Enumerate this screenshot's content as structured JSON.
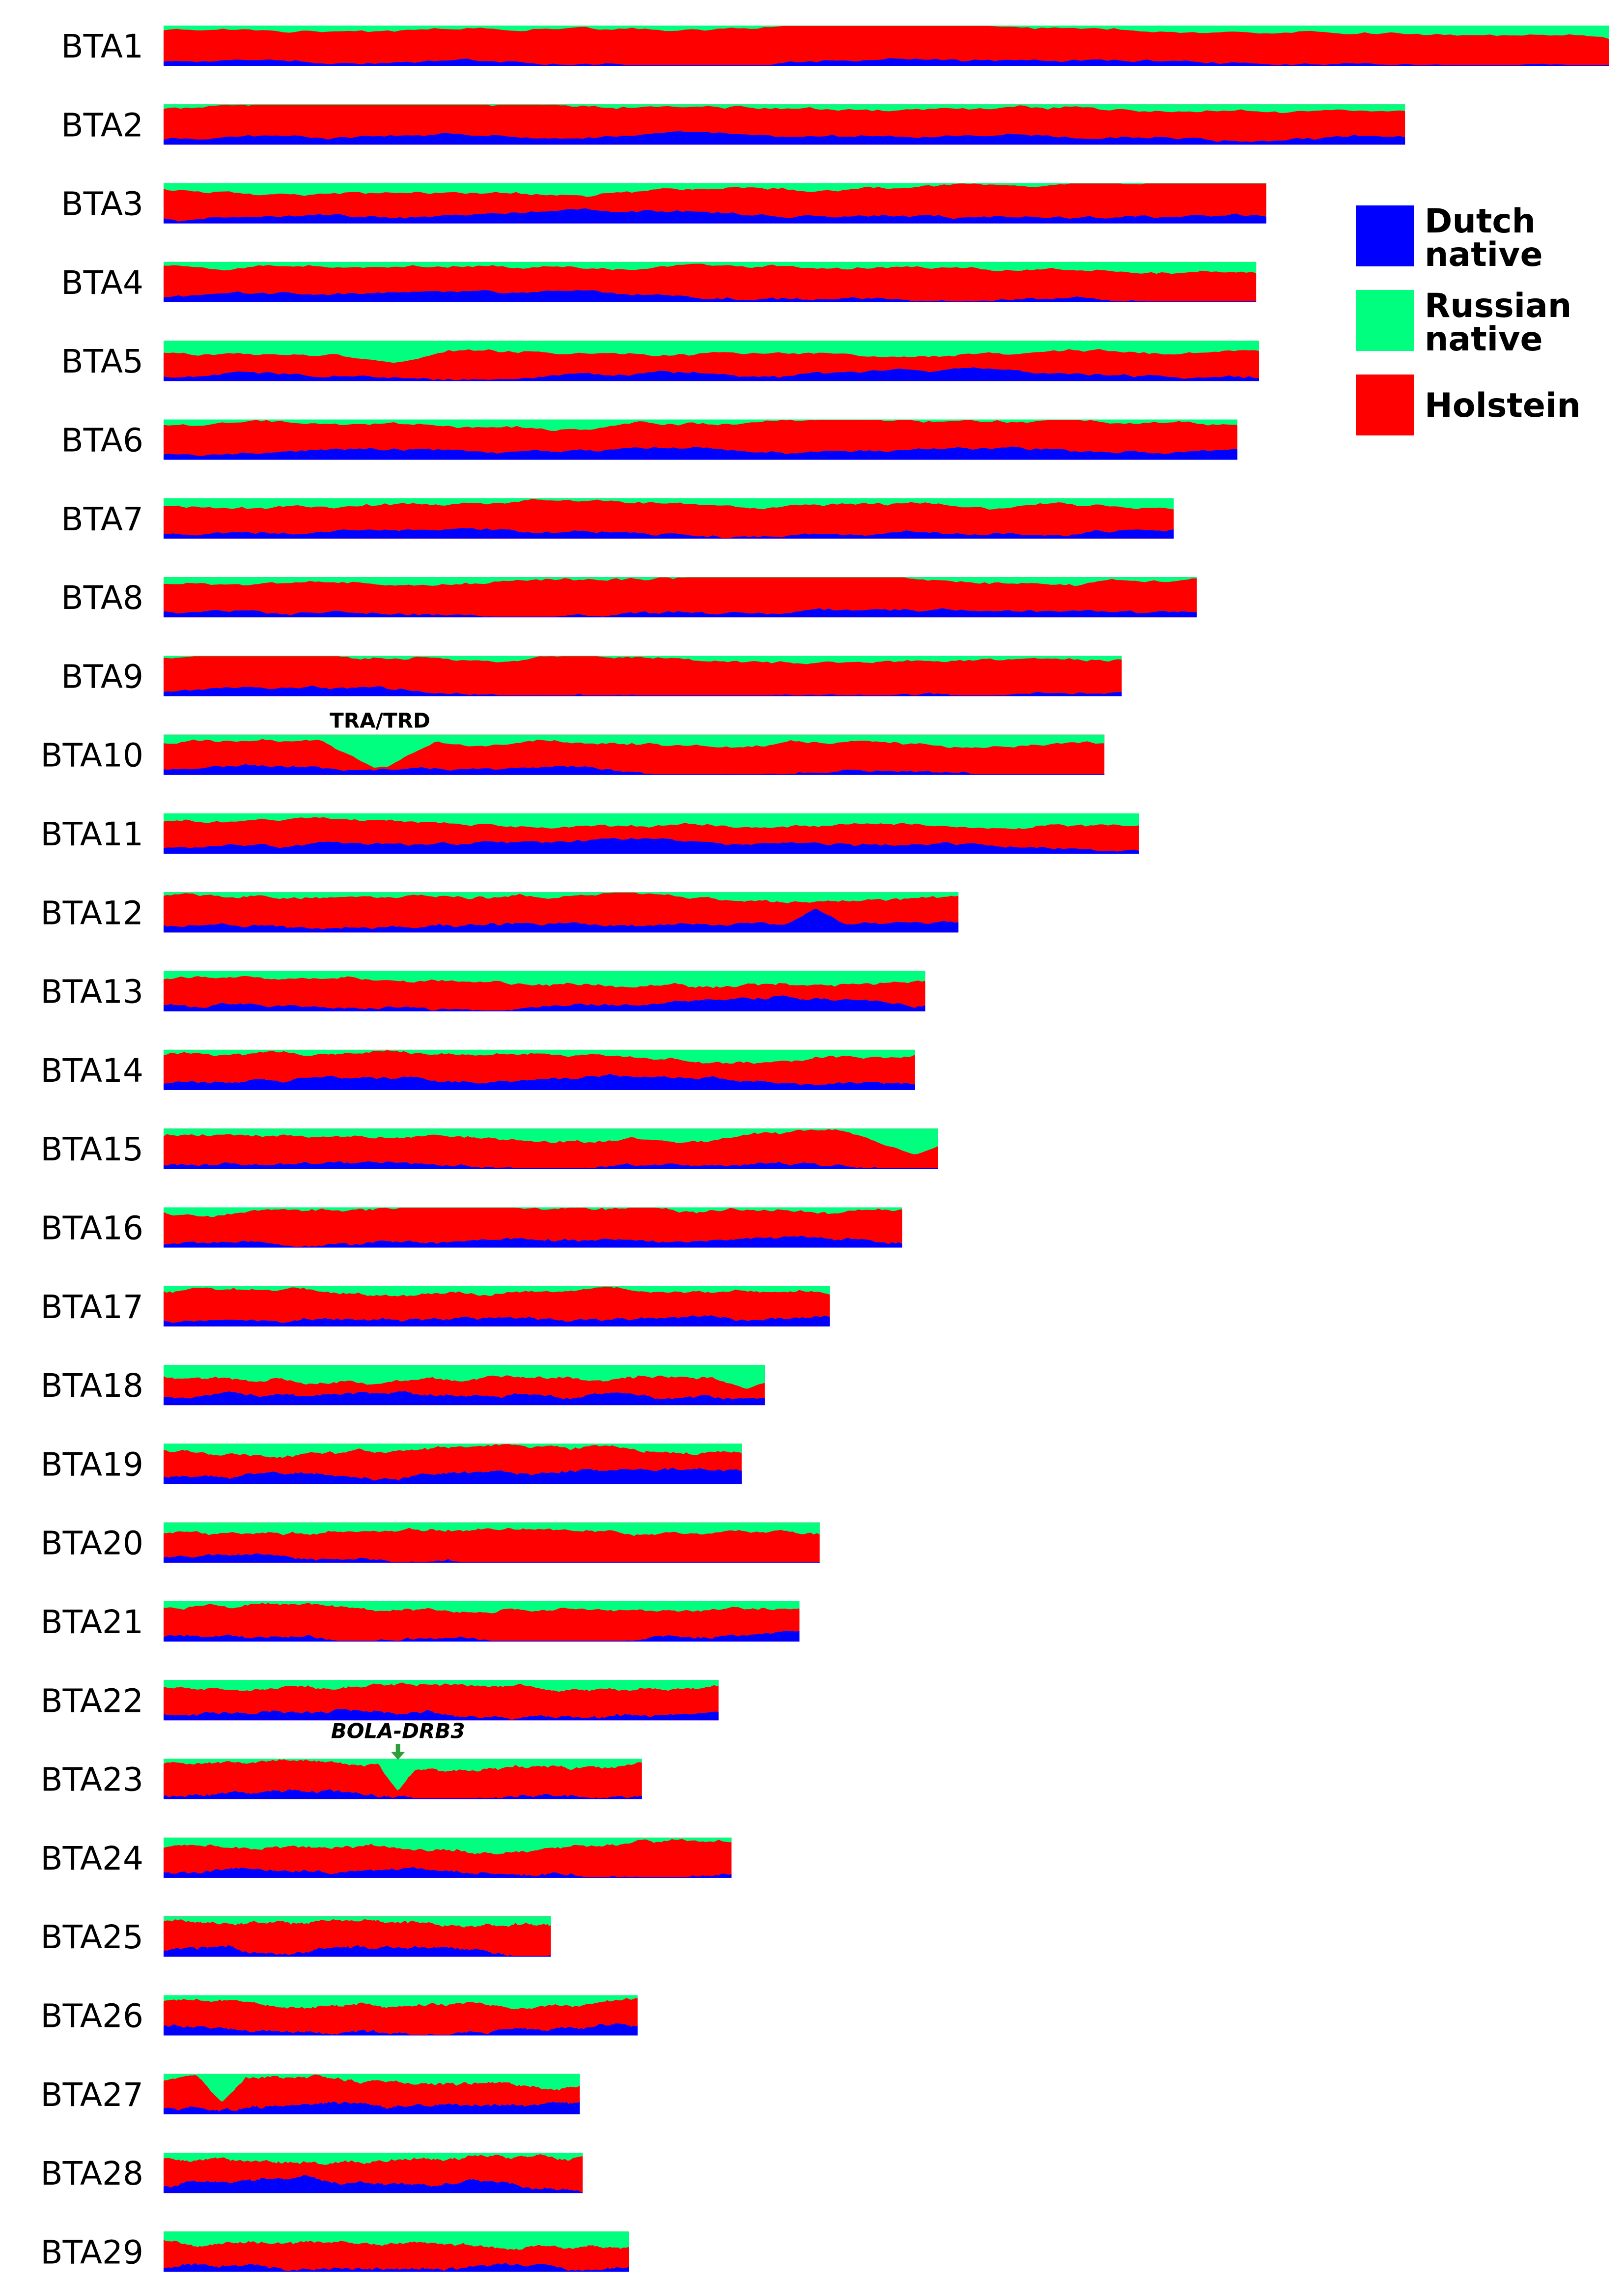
{
  "chart_data": {
    "type": "area",
    "title": "",
    "description_series": [
      "Dutch native",
      "Russian native",
      "Holstein"
    ],
    "colors": {
      "Dutch native": "#0000ff",
      "Russian native": "#00ff7f",
      "Holstein": "#ff0000"
    },
    "legend": {
      "placement": "top-right",
      "entries": [
        {
          "name": "Dutch native",
          "line1": "Dutch",
          "line2": "native",
          "color": "#0000ff"
        },
        {
          "name": "Russian native",
          "line1": "Russian",
          "line2": "native",
          "color": "#00ff7f"
        },
        {
          "name": "Holstein",
          "line1": "Holstein",
          "line2": "",
          "color": "#ff0000"
        }
      ]
    },
    "chromosomes": [
      {
        "label": "BTA1",
        "relative_length": 1.0,
        "dutch_mean": 0.1,
        "russian_mean": 0.1
      },
      {
        "label": "BTA2",
        "relative_length": 0.859,
        "dutch_mean": 0.12,
        "russian_mean": 0.12
      },
      {
        "label": "BTA3",
        "relative_length": 0.763,
        "dutch_mean": 0.1,
        "russian_mean": 0.12
      },
      {
        "label": "BTA4",
        "relative_length": 0.756,
        "dutch_mean": 0.1,
        "russian_mean": 0.1
      },
      {
        "label": "BTA5",
        "relative_length": 0.758,
        "dutch_mean": 0.1,
        "russian_mean": 0.28
      },
      {
        "label": "BTA6",
        "relative_length": 0.743,
        "dutch_mean": 0.12,
        "russian_mean": 0.15
      },
      {
        "label": "BTA7",
        "relative_length": 0.699,
        "dutch_mean": 0.12,
        "russian_mean": 0.2
      },
      {
        "label": "BTA8",
        "relative_length": 0.715,
        "dutch_mean": 0.12,
        "russian_mean": 0.15
      },
      {
        "label": "BTA9",
        "relative_length": 0.663,
        "dutch_mean": 0.08,
        "russian_mean": 0.06
      },
      {
        "label": "BTA10",
        "relative_length": 0.651,
        "dutch_mean": 0.12,
        "russian_mean": 0.2
      },
      {
        "label": "BTA11",
        "relative_length": 0.675,
        "dutch_mean": 0.12,
        "russian_mean": 0.22
      },
      {
        "label": "BTA12",
        "relative_length": 0.55,
        "dutch_mean": 0.2,
        "russian_mean": 0.08
      },
      {
        "label": "BTA13",
        "relative_length": 0.527,
        "dutch_mean": 0.18,
        "russian_mean": 0.22
      },
      {
        "label": "BTA14",
        "relative_length": 0.52,
        "dutch_mean": 0.18,
        "russian_mean": 0.12
      },
      {
        "label": "BTA15",
        "relative_length": 0.536,
        "dutch_mean": 0.12,
        "russian_mean": 0.15
      },
      {
        "label": "BTA16",
        "relative_length": 0.511,
        "dutch_mean": 0.1,
        "russian_mean": 0.14
      },
      {
        "label": "BTA17",
        "relative_length": 0.461,
        "dutch_mean": 0.15,
        "russian_mean": 0.12
      },
      {
        "label": "BTA18",
        "relative_length": 0.416,
        "dutch_mean": 0.2,
        "russian_mean": 0.3
      },
      {
        "label": "BTA19",
        "relative_length": 0.4,
        "dutch_mean": 0.2,
        "russian_mean": 0.15
      },
      {
        "label": "BTA20",
        "relative_length": 0.454,
        "dutch_mean": 0.15,
        "russian_mean": 0.28
      },
      {
        "label": "BTA21",
        "relative_length": 0.44,
        "dutch_mean": 0.12,
        "russian_mean": 0.15
      },
      {
        "label": "BTA22",
        "relative_length": 0.384,
        "dutch_mean": 0.15,
        "russian_mean": 0.2
      },
      {
        "label": "BTA23",
        "relative_length": 0.331,
        "dutch_mean": 0.08,
        "russian_mean": 0.12
      },
      {
        "label": "BTA24",
        "relative_length": 0.393,
        "dutch_mean": 0.15,
        "russian_mean": 0.22
      },
      {
        "label": "BTA25",
        "relative_length": 0.268,
        "dutch_mean": 0.15,
        "russian_mean": 0.12
      },
      {
        "label": "BTA26",
        "relative_length": 0.328,
        "dutch_mean": 0.22,
        "russian_mean": 0.15
      },
      {
        "label": "BTA27",
        "relative_length": 0.288,
        "dutch_mean": 0.15,
        "russian_mean": 0.2
      },
      {
        "label": "BTA28",
        "relative_length": 0.29,
        "dutch_mean": 0.15,
        "russian_mean": 0.15
      },
      {
        "label": "BTA29",
        "relative_length": 0.322,
        "dutch_mean": 0.1,
        "russian_mean": 0.22
      }
    ],
    "annotations": [
      {
        "chromosome": "BTA10",
        "text": "TRA/TRD",
        "position_fraction": 0.23,
        "italic": false,
        "arrow": false
      },
      {
        "chromosome": "BTA23",
        "text": "BOLA-DRB3",
        "position_fraction": 0.49,
        "italic": true,
        "arrow": true
      }
    ],
    "features": [
      {
        "chromosome": "BTA5",
        "position_fraction": 0.21,
        "series": "Russian native",
        "value": 0.55,
        "width_fraction": 0.05
      },
      {
        "chromosome": "BTA10",
        "position_fraction": 0.23,
        "series": "Russian native",
        "value": 0.9,
        "width_fraction": 0.06
      },
      {
        "chromosome": "BTA12",
        "position_fraction": 0.82,
        "series": "Dutch native",
        "value": 0.6,
        "width_fraction": 0.04
      },
      {
        "chromosome": "BTA15",
        "position_fraction": 0.97,
        "series": "Russian native",
        "value": 0.65,
        "width_fraction": 0.08
      },
      {
        "chromosome": "BTA23",
        "position_fraction": 0.49,
        "series": "Russian native",
        "value": 0.8,
        "width_fraction": 0.04
      },
      {
        "chromosome": "BTA27",
        "position_fraction": 0.14,
        "series": "Russian native",
        "value": 0.7,
        "width_fraction": 0.06
      },
      {
        "chromosome": "BTA18",
        "position_fraction": 0.97,
        "series": "Russian native",
        "value": 0.6,
        "width_fraction": 0.06
      }
    ]
  }
}
